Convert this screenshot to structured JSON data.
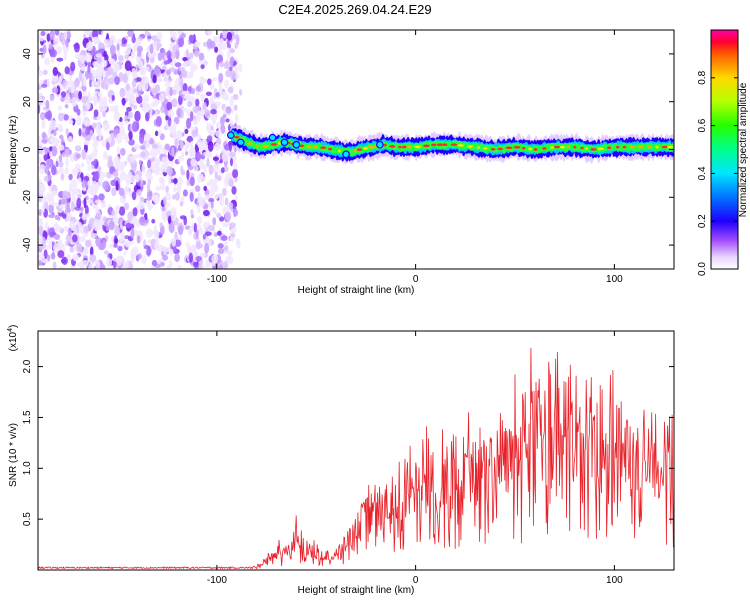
{
  "title": "C2E4.2025.269.04.24.E29",
  "colors": {
    "snr_line": "#e8222a",
    "noise_purple": "#7a1ee8",
    "background": "#ffffff"
  },
  "chart_data": [
    {
      "type": "heatmap",
      "title": "C2E4.2025.269.04.24.E29",
      "xlabel": "Height of straight line (km)",
      "ylabel": "Frequency (Hz)",
      "xlim": [
        -190,
        130
      ],
      "ylim": [
        -50,
        50
      ],
      "x_ticks": [
        -100,
        0,
        100
      ],
      "x_tick_labels": [
        "-100",
        "0",
        "100"
      ],
      "y_ticks": [
        -40,
        -20,
        0,
        20,
        40
      ],
      "y_tick_labels": [
        "-40",
        "-20",
        "0",
        "20",
        "40"
      ],
      "noise_region_x": [
        -190,
        -90
      ],
      "signal_track": {
        "x": [
          -92,
          -85,
          -78,
          -72,
          -66,
          -60,
          -54,
          -48,
          -42,
          -36,
          -32,
          -28,
          -22,
          -16,
          -10,
          0,
          10,
          20,
          30,
          40,
          50,
          60,
          70,
          80,
          90,
          100,
          110,
          120,
          130
        ],
        "freq_hz": [
          6,
          3,
          1,
          2,
          3,
          2,
          1,
          1,
          0,
          -1,
          -1,
          0,
          1,
          2,
          1,
          1,
          2,
          2,
          1,
          0,
          1,
          0,
          1,
          1,
          0,
          1,
          1,
          1,
          1
        ]
      },
      "colorbar": {
        "label": "Normalized spectral amplitude",
        "range": [
          0,
          1
        ],
        "ticks": [
          0.0,
          0.2,
          0.4,
          0.6,
          0.8
        ],
        "tick_labels": [
          "0.0",
          "0.2",
          "0.4",
          "0.6",
          "0.8"
        ]
      }
    },
    {
      "type": "line",
      "xlabel": "Height of straight line (km)",
      "ylabel": "SNR (10 * v/v)",
      "y_exponent_label": "(x10",
      "y_exponent_power": "4",
      "y_exponent_close": ")",
      "xlim": [
        -190,
        130
      ],
      "ylim": [
        0,
        2.35
      ],
      "x_ticks": [
        -100,
        0,
        100
      ],
      "x_tick_labels": [
        "-100",
        "0",
        "100"
      ],
      "y_ticks": [
        0.5,
        1.0,
        1.5,
        2.0
      ],
      "y_tick_labels": [
        "0.5",
        "1.0",
        "1.5",
        "2.0"
      ],
      "series": [
        {
          "name": "SNR",
          "x": [
            -190,
            -80,
            -75,
            -70,
            -65,
            -60,
            -55,
            -50,
            -45,
            -40,
            -35,
            -30,
            -25,
            -20,
            -15,
            -10,
            -5,
            0,
            10,
            20,
            30,
            40,
            50,
            60,
            70,
            80,
            90,
            100,
            110,
            120,
            130
          ],
          "envelope": [
            0.02,
            0.04,
            0.12,
            0.22,
            0.3,
            0.45,
            0.3,
            0.22,
            0.18,
            0.2,
            0.35,
            0.55,
            0.7,
            0.75,
            0.85,
            0.9,
            1.0,
            1.05,
            1.2,
            1.3,
            1.4,
            1.5,
            1.6,
            1.85,
            2.0,
            1.9,
            1.8,
            1.6,
            1.55,
            1.5,
            1.45
          ]
        }
      ]
    }
  ]
}
